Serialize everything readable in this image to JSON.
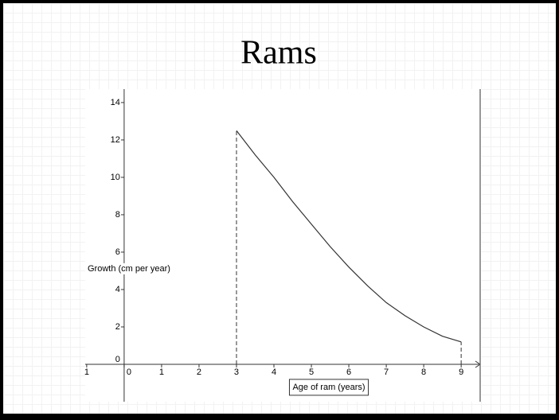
{
  "chart_data": {
    "type": "line",
    "title": "Rams",
    "x_label": "Age of ram (years)",
    "y_label": "Growth (cm per year)",
    "x": [
      3,
      3.5,
      4,
      4.5,
      5,
      5.5,
      6,
      6.5,
      7,
      7.5,
      8,
      8.5,
      9
    ],
    "series": [
      {
        "name": null,
        "color": "#333333",
        "values": [
          12.5,
          11.2,
          10.0,
          8.7,
          7.5,
          6.3,
          5.2,
          4.2,
          3.3,
          2.6,
          2.0,
          1.5,
          1.2
        ]
      }
    ],
    "xlim": [
      -1.04,
      9.55
    ],
    "ylim": [
      -2,
      14.72
    ],
    "xticks": [
      {
        "value": -1,
        "label": "1"
      },
      0,
      1,
      2,
      3,
      4,
      5,
      6,
      7,
      8,
      9
    ],
    "yticks": [
      0,
      2,
      4,
      6,
      8,
      10,
      12,
      14
    ],
    "grid": false
  }
}
